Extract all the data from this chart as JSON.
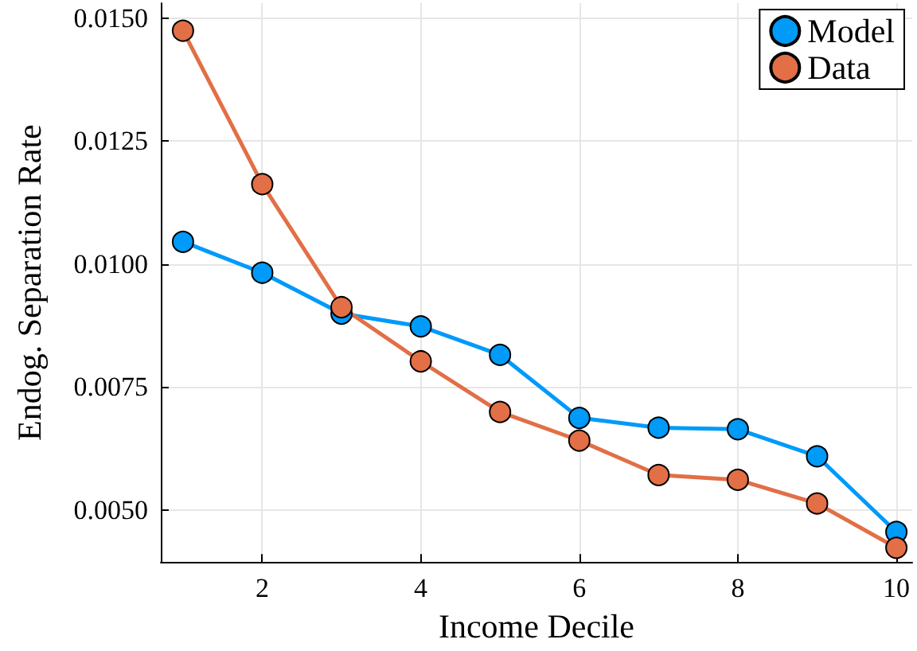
{
  "chart_data": {
    "type": "line",
    "xlabel": "Income Decile",
    "ylabel": "Endog. Separation Rate",
    "x": [
      1,
      2,
      3,
      4,
      5,
      6,
      7,
      8,
      9,
      10
    ],
    "series": [
      {
        "name": "Model",
        "color": "#009af9",
        "values": [
          0.01045,
          0.00982,
          0.00899,
          0.00873,
          0.00815,
          0.00687,
          0.00667,
          0.00664,
          0.00609,
          0.00455
        ]
      },
      {
        "name": "Data",
        "color": "#e26f46",
        "values": [
          0.01474,
          0.01162,
          0.00912,
          0.00802,
          0.00699,
          0.00641,
          0.00571,
          0.00561,
          0.00513,
          0.00423
        ]
      }
    ],
    "xlim": [
      0.72,
      10.2
    ],
    "ylim": [
      0.00394,
      0.0153
    ],
    "xticks": [
      2,
      4,
      6,
      8,
      10
    ],
    "yticks": [
      {
        "value": 0.005,
        "label": "0.0050"
      },
      {
        "value": 0.0075,
        "label": "0.0075"
      },
      {
        "value": 0.01,
        "label": "0.0100"
      },
      {
        "value": 0.0125,
        "label": "0.0125"
      },
      {
        "value": 0.015,
        "label": "0.0150"
      }
    ],
    "grid": true,
    "legend": "top right",
    "marker": "circle",
    "line_style": "solid"
  }
}
